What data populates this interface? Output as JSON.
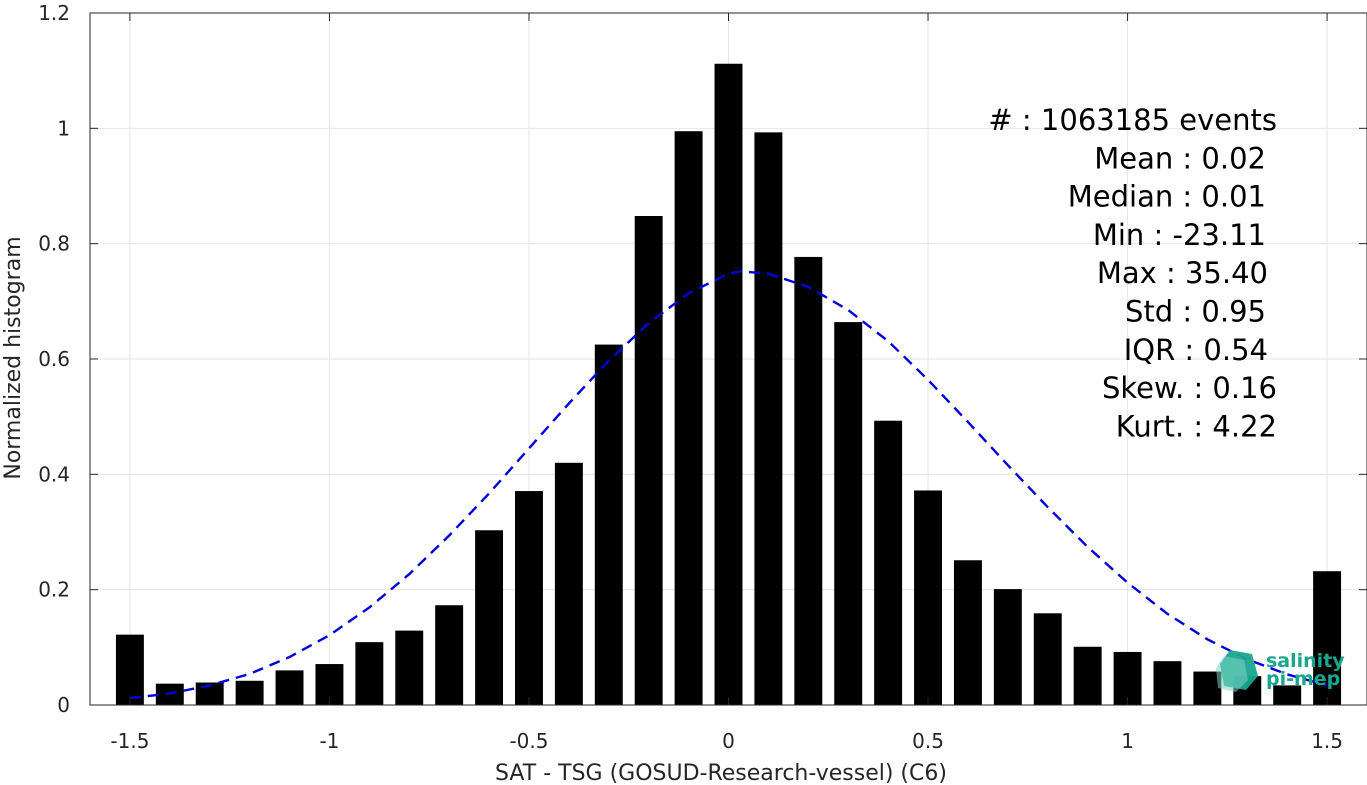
{
  "chart_data": {
    "type": "bar",
    "xlabel": "SAT - TSG (GOSUD-Research-vessel) (C6)",
    "ylabel": "Normalized histogram",
    "xlim": [
      -1.6,
      1.6
    ],
    "ylim": [
      0,
      1.2
    ],
    "xticks": [
      -1.5,
      -1,
      -0.5,
      0,
      0.5,
      1,
      1.5
    ],
    "xtick_labels": [
      "-1.5",
      "-1",
      "-0.5",
      "0",
      "0.5",
      "1",
      "1.5"
    ],
    "yticks": [
      0,
      0.2,
      0.4,
      0.6,
      0.8,
      1,
      1.2
    ],
    "ytick_labels": [
      "0",
      "0.2",
      "0.4",
      "0.6",
      "0.8",
      "1",
      "1.2"
    ],
    "grid": true,
    "bar_width": 0.07,
    "bars": {
      "x": [
        -1.5,
        -1.4,
        -1.3,
        -1.2,
        -1.1,
        -1.0,
        -0.9,
        -0.8,
        -0.7,
        -0.6,
        -0.5,
        -0.4,
        -0.3,
        -0.2,
        -0.1,
        0.0,
        0.1,
        0.2,
        0.3,
        0.4,
        0.5,
        0.6,
        0.7,
        0.8,
        0.9,
        1.0,
        1.1,
        1.2,
        1.3,
        1.4,
        1.5
      ],
      "values": [
        0.122,
        0.037,
        0.039,
        0.042,
        0.06,
        0.071,
        0.109,
        0.129,
        0.173,
        0.303,
        0.371,
        0.42,
        0.625,
        0.848,
        0.995,
        1.112,
        0.993,
        0.777,
        0.664,
        0.493,
        0.372,
        0.251,
        0.201,
        0.159,
        0.101,
        0.092,
        0.076,
        0.058,
        0.05,
        0.034,
        0.232
      ],
      "color": "#000000"
    },
    "fit_curve": {
      "style": "dashed",
      "color": "#0000dd",
      "x": [
        -1.5,
        -1.4,
        -1.3,
        -1.2,
        -1.1,
        -1.0,
        -0.9,
        -0.8,
        -0.7,
        -0.6,
        -0.5,
        -0.4,
        -0.3,
        -0.2,
        -0.1,
        0.0,
        0.03,
        0.1,
        0.2,
        0.3,
        0.4,
        0.5,
        0.6,
        0.7,
        0.8,
        0.9,
        1.0,
        1.1,
        1.2,
        1.3,
        1.4,
        1.5
      ],
      "y": [
        0.012,
        0.02,
        0.034,
        0.054,
        0.083,
        0.121,
        0.169,
        0.227,
        0.294,
        0.367,
        0.445,
        0.523,
        0.597,
        0.662,
        0.714,
        0.748,
        0.752,
        0.748,
        0.725,
        0.685,
        0.631,
        0.564,
        0.491,
        0.416,
        0.343,
        0.274,
        0.212,
        0.158,
        0.114,
        0.079,
        0.053,
        0.034
      ]
    },
    "annotations": [
      "#  : 1063185 events",
      "Mean : 0.02",
      "Median : 0.01",
      "Min : -23.11",
      "Max : 35.40",
      "Std : 0.95",
      "IQR : 0.54",
      "Skew. : 0.16",
      "Kurt. : 4.22"
    ]
  },
  "logo": {
    "line1": "salinity",
    "line2": "pi-mep",
    "color": "#1aa58f"
  }
}
